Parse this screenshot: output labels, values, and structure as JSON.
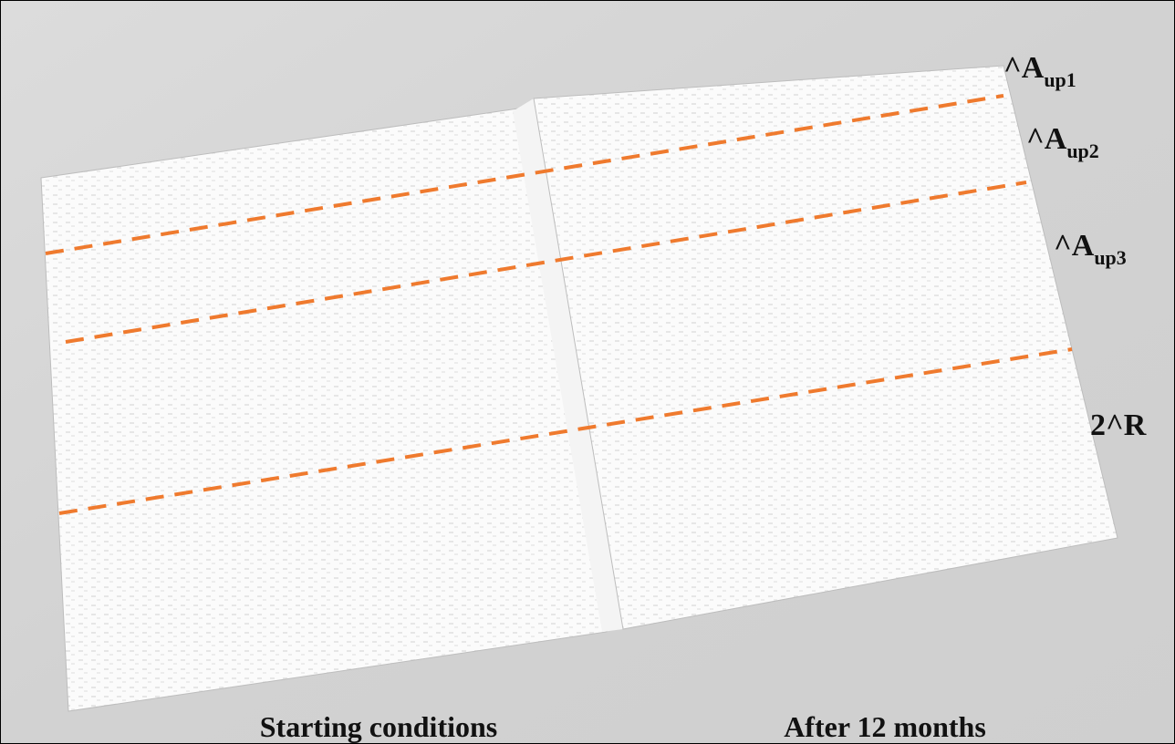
{
  "labels": [
    {
      "main": "^A",
      "sub": "up1"
    },
    {
      "main": "^A",
      "sub": "up2"
    },
    {
      "main": "^A",
      "sub": "up3"
    },
    {
      "main": "2^R"
    }
  ],
  "captions": [
    "Starting conditions",
    "After 12 months"
  ]
}
